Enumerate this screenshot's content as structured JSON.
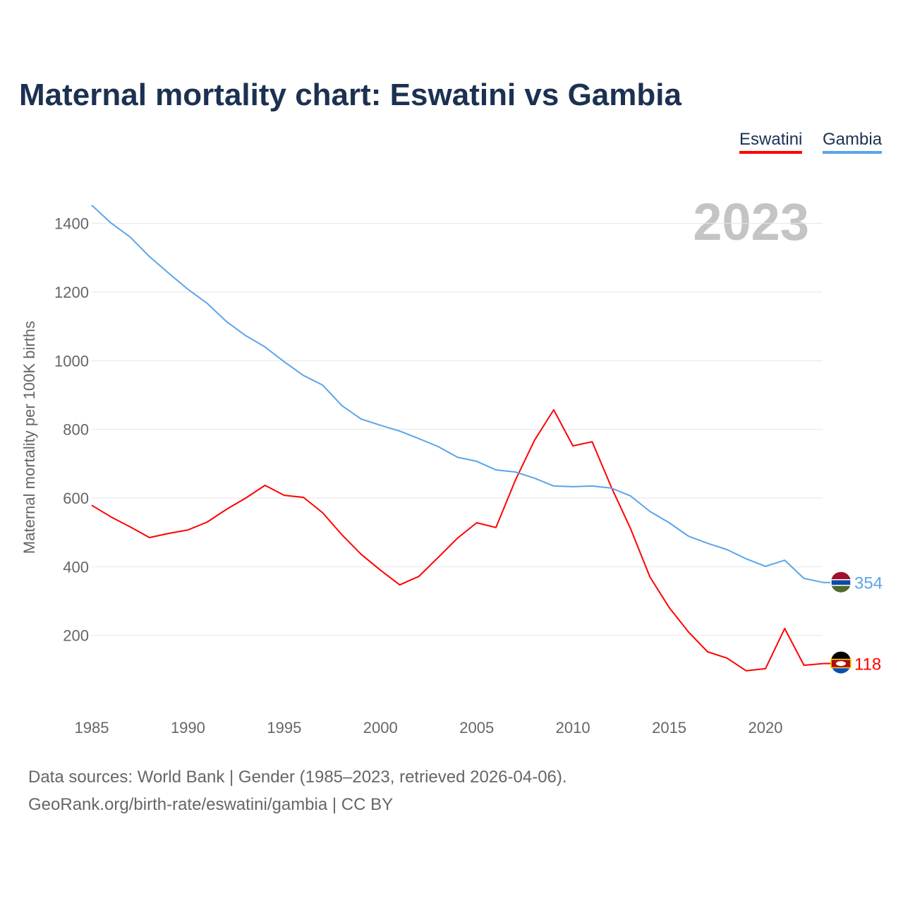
{
  "title": "Maternal mortality chart: Eswatini vs Gambia",
  "year_label": "2023",
  "footer": {
    "line1": "Data sources: World Bank | Gender (1985–2023, retrieved 2026-04-06).",
    "line2": "GeoRank.org/birth-rate/eswatini/gambia | CC BY"
  },
  "chart_data": {
    "type": "line",
    "title": "Maternal mortality chart: Eswatini vs Gambia",
    "xlabel": "",
    "ylabel": "Maternal mortality per 100K births",
    "xlim": [
      1985,
      2023
    ],
    "ylim": [
      0,
      1500
    ],
    "xticks": [
      1985,
      1990,
      1995,
      2000,
      2005,
      2010,
      2015,
      2020
    ],
    "yticks": [
      200,
      400,
      600,
      800,
      1000,
      1200,
      1400
    ],
    "grid": true,
    "legend": "top-right",
    "x": [
      1985,
      1986,
      1987,
      1988,
      1989,
      1990,
      1991,
      1992,
      1993,
      1994,
      1995,
      1996,
      1997,
      1998,
      1999,
      2000,
      2001,
      2002,
      2003,
      2004,
      2005,
      2006,
      2007,
      2008,
      2009,
      2010,
      2011,
      2012,
      2013,
      2014,
      2015,
      2016,
      2017,
      2018,
      2019,
      2020,
      2021,
      2022,
      2023
    ],
    "series": [
      {
        "name": "Eswatini",
        "color": "#ff0000",
        "end_label": "118",
        "values": [
          579,
          545,
          516,
          485,
          497,
          507,
          530,
          567,
          600,
          637,
          608,
          602,
          557,
          493,
          436,
          390,
          347,
          372,
          427,
          483,
          528,
          514,
          651,
          768,
          857,
          752,
          764,
          631,
          510,
          370,
          281,
          210,
          152,
          134,
          97,
          103,
          220,
          113,
          118
        ]
      },
      {
        "name": "Gambia",
        "color": "#5aa5ea",
        "end_label": "354",
        "values": [
          1453,
          1401,
          1360,
          1303,
          1255,
          1208,
          1167,
          1114,
          1073,
          1040,
          997,
          957,
          929,
          869,
          830,
          812,
          795,
          773,
          750,
          719,
          707,
          682,
          676,
          658,
          635,
          633,
          635,
          629,
          606,
          561,
          528,
          489,
          468,
          450,
          423,
          401,
          419,
          366,
          354
        ]
      }
    ]
  }
}
